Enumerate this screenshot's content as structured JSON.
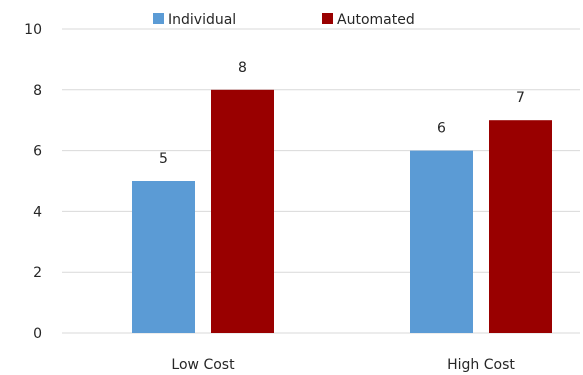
{
  "chart_data": {
    "type": "bar",
    "categories": [
      "Low Cost",
      "High Cost"
    ],
    "series": [
      {
        "name": "Individual",
        "values": [
          5,
          6
        ],
        "color": "#5b9bd5"
      },
      {
        "name": "Automated",
        "values": [
          8,
          7
        ],
        "color": "#990000"
      }
    ],
    "ylim": [
      0,
      10
    ],
    "yticks": [
      0,
      2,
      4,
      6,
      8,
      10
    ],
    "grid": true,
    "legend": "top"
  }
}
